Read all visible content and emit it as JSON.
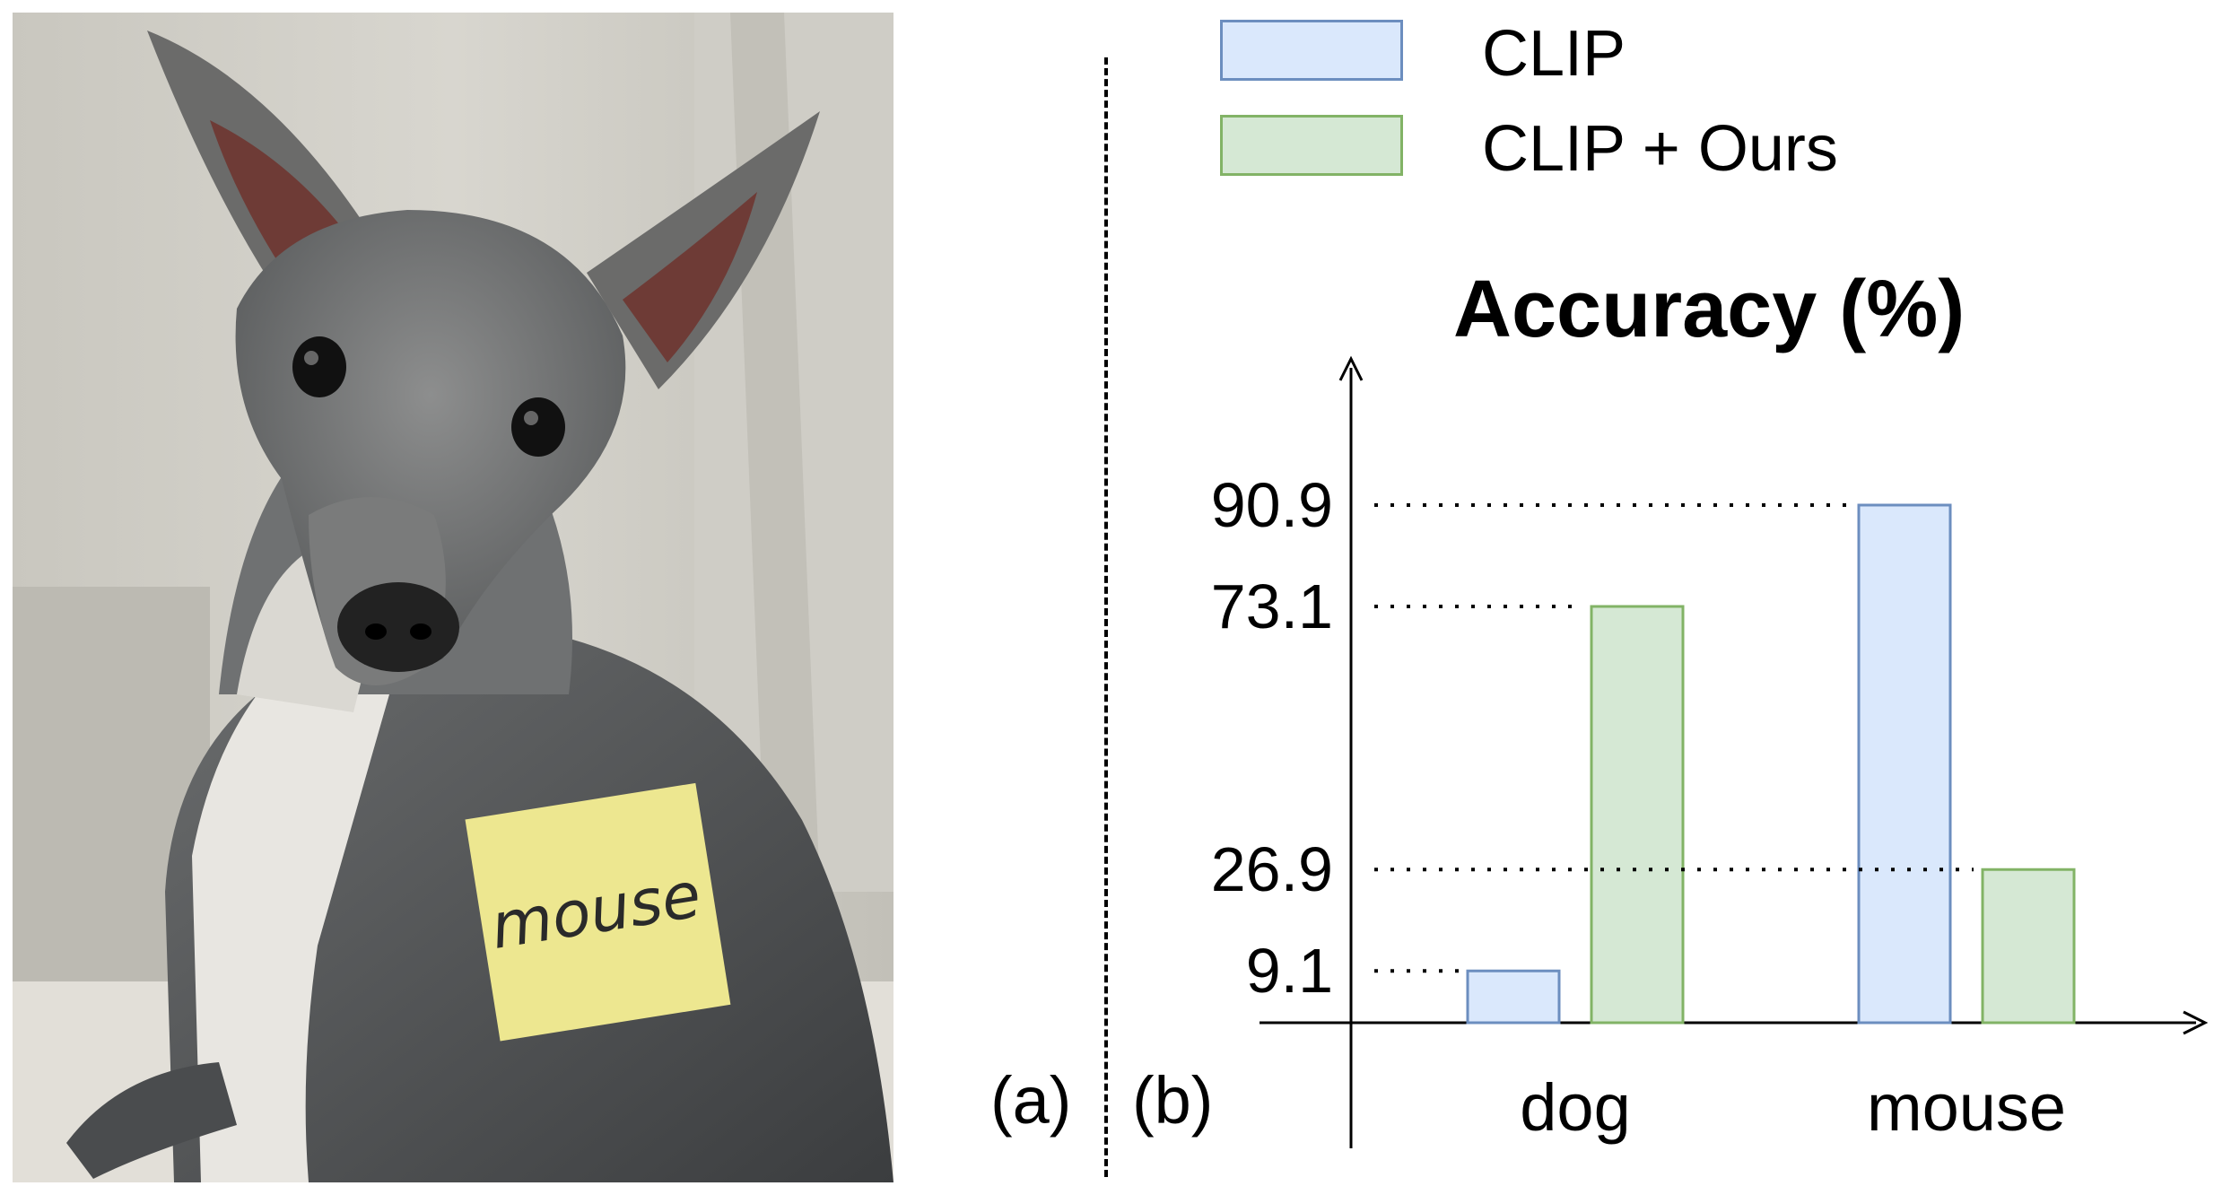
{
  "panels": {
    "a": "(a)",
    "b": "(b)"
  },
  "photo": {
    "sticky_note_text": "mouse"
  },
  "legend": [
    {
      "name": "CLIP",
      "fill": "#dae8fc",
      "stroke": "#6c8ebf"
    },
    {
      "name": "CLIP + Ours",
      "fill": "#d5e8d4",
      "stroke": "#82b366"
    }
  ],
  "chart_data": {
    "type": "bar",
    "title": "Accuracy (%)",
    "categories": [
      "dog",
      "mouse"
    ],
    "series": [
      {
        "name": "CLIP",
        "values": [
          9.1,
          90.9
        ]
      },
      {
        "name": "CLIP + Ours",
        "values": [
          73.1,
          26.9
        ]
      }
    ],
    "y_ticks": [
      "90.9",
      "73.1",
      "26.9",
      "9.1"
    ],
    "ylim": [
      0,
      100
    ],
    "grid": false,
    "legend_position": "top"
  }
}
